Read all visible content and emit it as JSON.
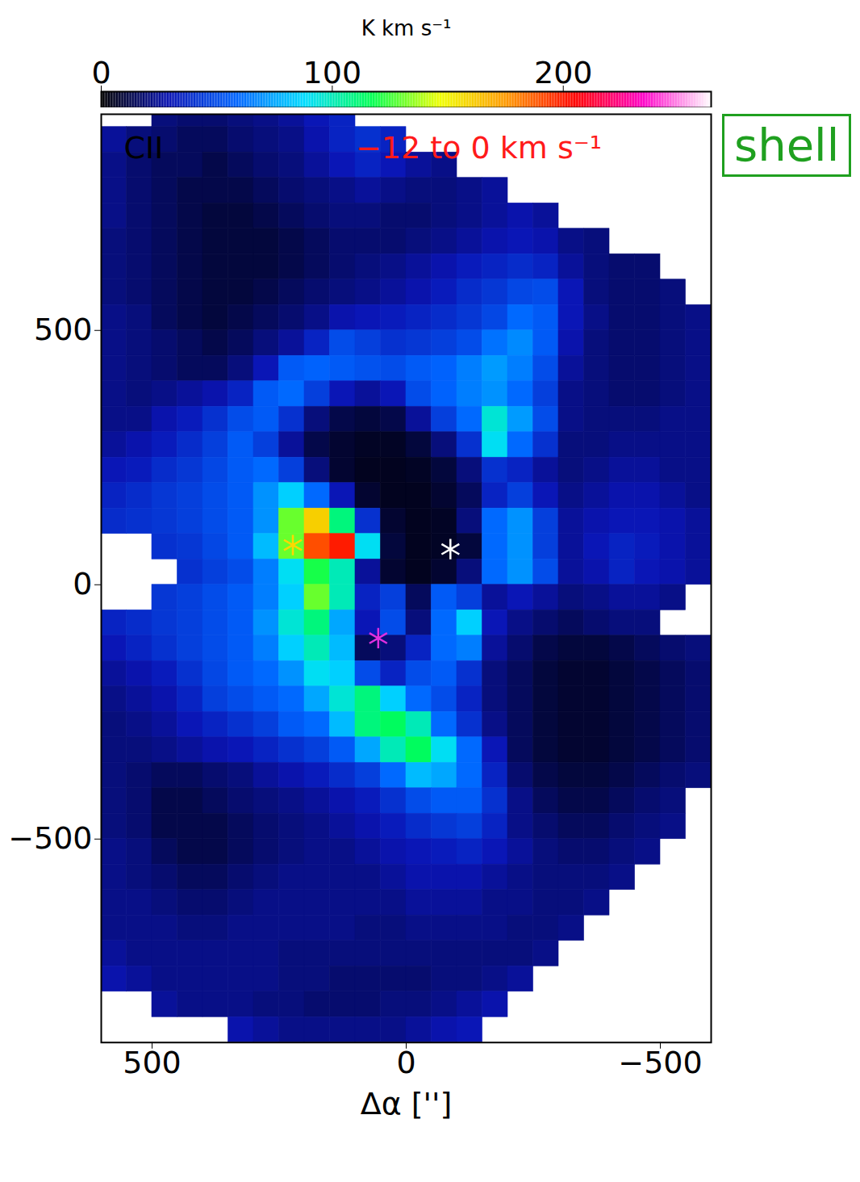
{
  "chart_data": {
    "type": "heatmap",
    "title": "CII",
    "subtitle": "−12 to 0 km s⁻¹",
    "annotation": "shell",
    "xlabel": "Δα ['']",
    "xlim": [
      600,
      -600
    ],
    "xticks": [
      500,
      0,
      -500
    ],
    "ylim": [
      -900,
      925
    ],
    "yticks": [
      500,
      0,
      -500
    ],
    "x": [
      575,
      525,
      475,
      425,
      375,
      325,
      275,
      225,
      175,
      125,
      75,
      25,
      -25,
      -75,
      -125,
      -175,
      -225,
      -275,
      -325,
      -375,
      -425,
      -475,
      -525,
      -575
    ],
    "y": [
      925,
      875,
      825,
      775,
      725,
      675,
      625,
      575,
      525,
      475,
      425,
      375,
      325,
      275,
      225,
      175,
      125,
      75,
      25,
      -25,
      -75,
      -125,
      -175,
      -225,
      -275,
      -325,
      -375,
      -425,
      -475,
      -525,
      -575,
      -625,
      -675,
      -725,
      -775,
      -825,
      -875
    ],
    "values": [
      [
        null,
        null,
        20,
        18,
        18,
        20,
        22,
        25,
        30,
        35,
        null,
        null,
        null,
        null,
        null,
        null,
        null,
        null,
        null,
        null,
        null,
        null,
        null,
        null
      ],
      [
        25,
        20,
        18,
        15,
        15,
        18,
        20,
        22,
        28,
        35,
        40,
        35,
        null,
        null,
        null,
        null,
        null,
        null,
        null,
        null,
        null,
        null,
        null,
        null
      ],
      [
        22,
        18,
        15,
        15,
        12,
        15,
        18,
        20,
        25,
        30,
        35,
        30,
        25,
        22,
        null,
        null,
        null,
        null,
        null,
        null,
        null,
        null,
        null,
        null
      ],
      [
        22,
        18,
        15,
        12,
        12,
        12,
        15,
        18,
        20,
        22,
        25,
        22,
        20,
        20,
        22,
        25,
        null,
        null,
        null,
        null,
        null,
        null,
        null,
        null
      ],
      [
        22,
        18,
        15,
        12,
        10,
        10,
        12,
        15,
        18,
        20,
        20,
        18,
        18,
        20,
        22,
        25,
        28,
        25,
        null,
        null,
        null,
        null,
        null,
        null
      ],
      [
        20,
        18,
        15,
        12,
        10,
        10,
        10,
        12,
        15,
        18,
        18,
        18,
        20,
        22,
        25,
        28,
        30,
        28,
        22,
        20,
        null,
        null,
        null,
        null
      ],
      [
        20,
        18,
        15,
        12,
        10,
        10,
        10,
        12,
        15,
        18,
        20,
        22,
        25,
        28,
        32,
        35,
        38,
        35,
        25,
        20,
        18,
        18,
        null,
        null
      ],
      [
        20,
        18,
        15,
        12,
        10,
        10,
        12,
        15,
        18,
        20,
        22,
        25,
        28,
        32,
        38,
        42,
        48,
        50,
        30,
        20,
        18,
        18,
        20,
        null
      ],
      [
        22,
        20,
        15,
        12,
        10,
        12,
        15,
        18,
        22,
        28,
        30,
        32,
        35,
        38,
        42,
        48,
        60,
        55,
        30,
        22,
        18,
        18,
        20,
        22
      ],
      [
        22,
        20,
        18,
        15,
        12,
        15,
        20,
        25,
        35,
        50,
        45,
        40,
        42,
        45,
        50,
        62,
        68,
        55,
        28,
        20,
        18,
        18,
        20,
        22
      ],
      [
        22,
        20,
        18,
        15,
        15,
        20,
        30,
        55,
        58,
        55,
        52,
        50,
        55,
        58,
        65,
        72,
        65,
        50,
        25,
        20,
        18,
        18,
        20,
        22
      ],
      [
        22,
        20,
        22,
        25,
        28,
        35,
        55,
        60,
        45,
        30,
        25,
        30,
        50,
        58,
        65,
        70,
        60,
        45,
        22,
        20,
        18,
        18,
        20,
        22
      ],
      [
        22,
        22,
        28,
        32,
        40,
        50,
        55,
        40,
        20,
        12,
        10,
        12,
        25,
        45,
        60,
        95,
        72,
        50,
        22,
        20,
        20,
        20,
        22,
        22
      ],
      [
        25,
        28,
        32,
        38,
        45,
        55,
        45,
        25,
        12,
        8,
        6,
        6,
        10,
        20,
        40,
        90,
        60,
        40,
        20,
        20,
        22,
        22,
        22,
        22
      ],
      [
        30,
        32,
        38,
        42,
        48,
        55,
        60,
        45,
        20,
        8,
        5,
        5,
        6,
        10,
        20,
        40,
        35,
        25,
        20,
        22,
        25,
        25,
        22,
        22
      ],
      [
        35,
        38,
        42,
        45,
        50,
        55,
        70,
        85,
        60,
        30,
        8,
        5,
        5,
        8,
        15,
        35,
        45,
        30,
        22,
        25,
        28,
        28,
        25,
        22
      ],
      [
        38,
        40,
        42,
        45,
        50,
        55,
        70,
        130,
        160,
        110,
        40,
        8,
        5,
        6,
        20,
        60,
        70,
        45,
        25,
        28,
        30,
        30,
        28,
        25
      ],
      [
        null,
        null,
        40,
        42,
        48,
        55,
        80,
        130,
        190,
        200,
        90,
        10,
        5,
        6,
        10,
        60,
        70,
        45,
        25,
        30,
        35,
        32,
        28,
        25
      ],
      [
        null,
        null,
        null,
        40,
        45,
        50,
        65,
        90,
        120,
        100,
        25,
        8,
        5,
        8,
        20,
        60,
        70,
        50,
        25,
        28,
        35,
        30,
        28,
        25
      ],
      [
        null,
        null,
        42,
        45,
        50,
        55,
        65,
        85,
        130,
        100,
        35,
        45,
        15,
        55,
        45,
        25,
        30,
        25,
        20,
        22,
        25,
        25,
        22,
        null
      ],
      [
        35,
        38,
        42,
        45,
        50,
        55,
        70,
        95,
        110,
        75,
        30,
        50,
        20,
        60,
        85,
        30,
        22,
        18,
        15,
        18,
        20,
        20,
        null,
        null
      ],
      [
        30,
        35,
        40,
        45,
        50,
        55,
        65,
        85,
        100,
        80,
        15,
        20,
        35,
        60,
        65,
        25,
        18,
        12,
        10,
        10,
        12,
        15,
        18,
        20
      ],
      [
        25,
        28,
        32,
        40,
        48,
        55,
        60,
        70,
        90,
        85,
        50,
        35,
        50,
        55,
        40,
        20,
        15,
        10,
        8,
        8,
        10,
        12,
        15,
        18
      ],
      [
        22,
        25,
        28,
        35,
        45,
        50,
        55,
        60,
        75,
        95,
        110,
        85,
        60,
        50,
        35,
        20,
        15,
        10,
        8,
        8,
        10,
        12,
        15,
        18
      ],
      [
        20,
        22,
        25,
        30,
        35,
        40,
        45,
        55,
        60,
        80,
        110,
        115,
        100,
        60,
        40,
        22,
        15,
        10,
        8,
        8,
        10,
        12,
        15,
        18
      ],
      [
        20,
        20,
        22,
        25,
        28,
        30,
        35,
        40,
        45,
        55,
        75,
        100,
        115,
        90,
        60,
        30,
        15,
        10,
        8,
        8,
        10,
        12,
        15,
        18
      ],
      [
        20,
        18,
        15,
        15,
        18,
        20,
        25,
        28,
        32,
        38,
        45,
        60,
        80,
        75,
        60,
        35,
        18,
        12,
        10,
        10,
        12,
        15,
        18,
        20
      ],
      [
        20,
        18,
        12,
        12,
        15,
        18,
        20,
        22,
        25,
        28,
        32,
        40,
        50,
        55,
        55,
        40,
        22,
        15,
        12,
        12,
        15,
        18,
        20,
        null
      ],
      [
        20,
        18,
        12,
        12,
        12,
        15,
        18,
        20,
        22,
        25,
        28,
        32,
        38,
        42,
        45,
        35,
        22,
        18,
        15,
        15,
        18,
        20,
        22,
        null
      ],
      [
        22,
        20,
        15,
        12,
        12,
        15,
        18,
        20,
        22,
        22,
        25,
        28,
        30,
        32,
        35,
        30,
        25,
        20,
        18,
        18,
        20,
        22,
        null,
        null
      ],
      [
        22,
        20,
        18,
        15,
        15,
        18,
        20,
        22,
        22,
        22,
        22,
        25,
        28,
        28,
        28,
        25,
        22,
        20,
        20,
        20,
        22,
        null,
        null,
        null
      ],
      [
        22,
        22,
        20,
        18,
        18,
        20,
        22,
        22,
        22,
        22,
        22,
        22,
        25,
        25,
        25,
        22,
        22,
        20,
        20,
        22,
        null,
        null,
        null,
        null
      ],
      [
        22,
        22,
        22,
        20,
        20,
        22,
        22,
        22,
        22,
        22,
        20,
        20,
        22,
        22,
        22,
        22,
        20,
        20,
        22,
        null,
        null,
        null,
        null,
        null
      ],
      [
        25,
        22,
        22,
        22,
        22,
        22,
        22,
        20,
        20,
        20,
        20,
        20,
        20,
        20,
        20,
        20,
        20,
        22,
        null,
        null,
        null,
        null,
        null,
        null
      ],
      [
        28,
        25,
        22,
        22,
        22,
        22,
        22,
        20,
        20,
        18,
        18,
        18,
        18,
        20,
        20,
        22,
        25,
        null,
        null,
        null,
        null,
        null,
        null,
        null
      ],
      [
        null,
        null,
        25,
        22,
        22,
        22,
        20,
        20,
        18,
        18,
        18,
        20,
        20,
        22,
        25,
        28,
        null,
        null,
        null,
        null,
        null,
        null,
        null,
        null
      ],
      [
        null,
        null,
        null,
        null,
        null,
        28,
        25,
        22,
        22,
        22,
        22,
        22,
        25,
        28,
        30,
        null,
        null,
        null,
        null,
        null,
        null,
        null,
        null,
        null
      ]
    ],
    "colorbar": {
      "range": [
        0,
        264
      ],
      "ticks": [
        0,
        100,
        200
      ],
      "label": "K km s⁻¹",
      "colors": [
        "#000000",
        "#0a14b4",
        "#0064ff",
        "#00dcff",
        "#00ff50",
        "#f0ff00",
        "#ff9600",
        "#ff0000",
        "#ff00c8",
        "#ffffff"
      ]
    },
    "marker": "asterisk",
    "points": [
      {
        "x": 223,
        "y": 78,
        "color": "#ffd800"
      },
      {
        "x": -87,
        "y": 70,
        "color": "#ffffff"
      },
      {
        "x": 55,
        "y": -105,
        "color": "#e030e0"
      }
    ]
  }
}
